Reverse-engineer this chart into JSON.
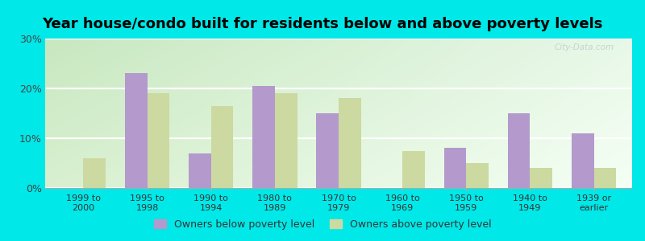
{
  "title": "Year house/condo built for residents below and above poverty levels",
  "categories": [
    "1999 to\n2000",
    "1995 to\n1998",
    "1990 to\n1994",
    "1980 to\n1989",
    "1970 to\n1979",
    "1960 to\n1969",
    "1950 to\n1959",
    "1940 to\n1949",
    "1939 or\nearlier"
  ],
  "below_poverty": [
    0,
    23,
    7,
    20.5,
    15,
    0,
    8,
    15,
    11
  ],
  "above_poverty": [
    6,
    19,
    16.5,
    19,
    18,
    7.5,
    5,
    4,
    4
  ],
  "below_color": "#b399cc",
  "above_color": "#ccd9a0",
  "ylim": [
    0,
    30
  ],
  "yticks": [
    0,
    10,
    20,
    30
  ],
  "ytick_labels": [
    "0%",
    "10%",
    "20%",
    "30%"
  ],
  "bar_width": 0.35,
  "outer_color": "#00e8e8",
  "plot_bg_color_topleft": "#c8e8c0",
  "plot_bg_color_bottomright": "#f0fff0",
  "legend_below_label": "Owners below poverty level",
  "legend_above_label": "Owners above poverty level",
  "watermark": "City-Data.com",
  "grid_color": "#ffffff",
  "title_fontsize": 13,
  "tick_fontsize": 8,
  "legend_fontsize": 9
}
